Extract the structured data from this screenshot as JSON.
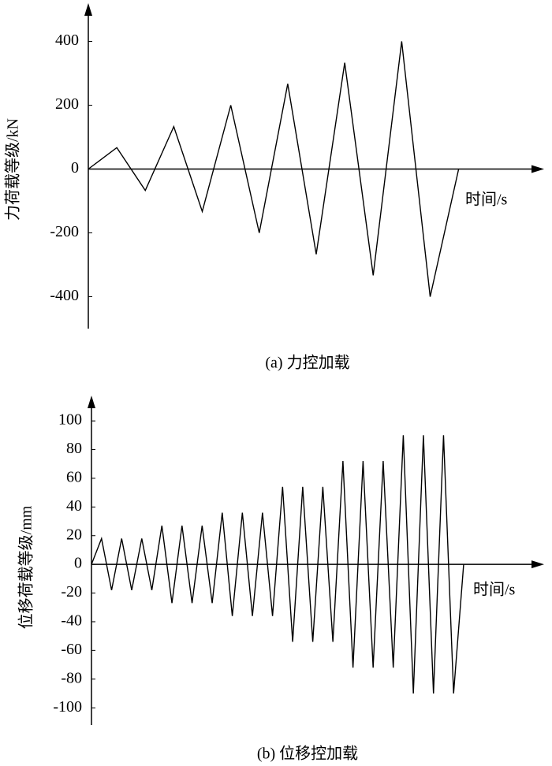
{
  "chart_data": [
    {
      "type": "line",
      "caption": "(a) 力控加载",
      "ylabel": "力荷载等级/kN",
      "xlabel": "时间/s",
      "x": [
        0,
        1,
        2,
        3,
        4,
        5,
        6,
        7,
        8,
        9,
        10,
        11,
        12,
        13
      ],
      "values": [
        0,
        67,
        -67,
        133,
        -133,
        200,
        -200,
        267,
        -267,
        333,
        -333,
        400,
        -400,
        0
      ],
      "color": "#000000",
      "xlim": [
        0,
        16
      ],
      "ylim": [
        -500,
        500
      ],
      "yticks": [
        400,
        200,
        0,
        -200,
        -400
      ]
    },
    {
      "type": "line",
      "caption": "(b) 位移控加载",
      "ylabel": "位移荷载等级/mm",
      "xlabel": "时间/s",
      "x": [
        0,
        1,
        2,
        3,
        4,
        5,
        6,
        7,
        8,
        9,
        10,
        11,
        12,
        13,
        14,
        15,
        16,
        17,
        18,
        19,
        20,
        21,
        22,
        23,
        24,
        25,
        26,
        27,
        28,
        29,
        30,
        31,
        32,
        33,
        34,
        35,
        36,
        37
      ],
      "values": [
        0,
        18,
        -18,
        18,
        -18,
        18,
        -18,
        27,
        -27,
        27,
        -27,
        27,
        -27,
        36,
        -36,
        36,
        -36,
        36,
        -36,
        54,
        -54,
        54,
        -54,
        54,
        -54,
        72,
        -72,
        72,
        -72,
        72,
        -72,
        90,
        -90,
        90,
        -90,
        90,
        -90,
        0
      ],
      "color": "#000000",
      "xlim": [
        0,
        45
      ],
      "ylim": [
        -112,
        116
      ],
      "yticks": [
        100,
        80,
        60,
        40,
        20,
        0,
        -20,
        -40,
        -60,
        -80,
        -100
      ]
    }
  ]
}
